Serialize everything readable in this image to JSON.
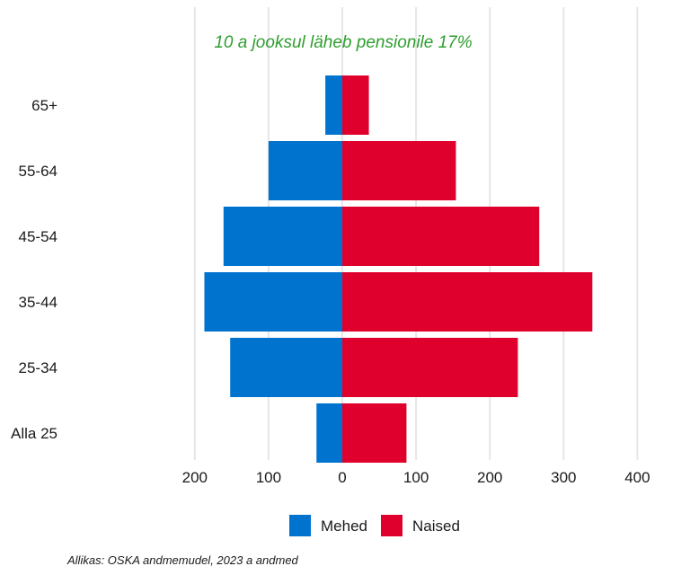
{
  "chart_data": {
    "type": "bar",
    "orientation": "horizontal",
    "categories": [
      "Alla 25",
      "25-34",
      "35-44",
      "45-54",
      "55-64",
      "65+"
    ],
    "series": [
      {
        "name": "Mehed",
        "values": [
          35,
          152,
          187,
          161,
          100,
          23
        ],
        "direction": "left",
        "color": "#0073cf"
      },
      {
        "name": "Naised",
        "values": [
          87,
          238,
          339,
          267,
          154,
          36
        ],
        "direction": "right",
        "color": "#e0002d"
      }
    ],
    "xlim": [
      -200,
      400
    ],
    "x_ticks": [
      {
        "value": -200,
        "label": "200"
      },
      {
        "value": -100,
        "label": "100"
      },
      {
        "value": 0,
        "label": "0"
      },
      {
        "value": 100,
        "label": "100"
      },
      {
        "value": 200,
        "label": "200"
      },
      {
        "value": 300,
        "label": "300"
      },
      {
        "value": 400,
        "label": "400"
      }
    ],
    "grid": "vertical",
    "legend_position": "bottom",
    "annotation": {
      "text": "10 a jooksul läheb pensionile 17%",
      "color": "#2e9e2e"
    },
    "caption": "Allikas: OSKA andmemudel, 2023 a andmed"
  }
}
